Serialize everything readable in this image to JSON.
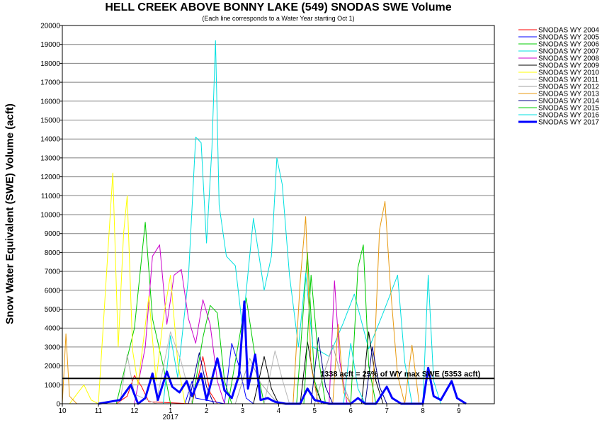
{
  "chart_data": {
    "type": "line",
    "title": "HELL CREEK ABOVE BONNY LAKE (549) SNODAS SWE Volume",
    "subtitle": "(Each line corresponds to a Water Year starting Oct 1)",
    "ylabel": "Snow Water Equivalent (SWE) Volume (acft)",
    "xlabel": "",
    "ylim": [
      0,
      20000
    ],
    "y_ticks": [
      0,
      1000,
      2000,
      3000,
      4000,
      5000,
      6000,
      7000,
      8000,
      9000,
      10000,
      11000,
      12000,
      13000,
      14000,
      15000,
      16000,
      17000,
      18000,
      19000,
      20000
    ],
    "y_tick_labels": [
      "0",
      "1000",
      "2000",
      "3000",
      "4000",
      "5000",
      "6000",
      "7000",
      "8000",
      "9000",
      "10000",
      "11000",
      "12000",
      "13000",
      "14000",
      "15000",
      "16000",
      "17000",
      "18000",
      "19000",
      "20000"
    ],
    "x_tick_labels": [
      "10",
      "11",
      "12",
      "1",
      "2",
      "3",
      "4",
      "5",
      "6",
      "7",
      "8",
      "9"
    ],
    "x_year_label": "2017",
    "grid": true,
    "legend_position": "right",
    "reference_line": {
      "value": 1338,
      "label": "1338 acft = 25% of WY max SWE (5353 acft)"
    },
    "series": [
      {
        "name": "SNODAS WY 2004",
        "color": "#ff0000",
        "width": 1,
        "points": [
          [
            1.5,
            0
          ],
          [
            1.8,
            400
          ],
          [
            2.0,
            1500
          ],
          [
            2.2,
            900
          ],
          [
            2.4,
            100
          ],
          [
            3.6,
            0
          ],
          [
            3.9,
            2500
          ],
          [
            4.1,
            600
          ],
          [
            4.3,
            0
          ]
        ]
      },
      {
        "name": "SNODAS WY 2005",
        "color": "#0000ff",
        "width": 1,
        "points": [
          [
            3.4,
            0
          ],
          [
            3.6,
            1200
          ],
          [
            3.7,
            300
          ],
          [
            4.5,
            0
          ],
          [
            4.7,
            3200
          ],
          [
            4.9,
            2000
          ],
          [
            5.1,
            300
          ],
          [
            5.3,
            0
          ]
        ]
      },
      {
        "name": "SNODAS WY 2006",
        "color": "#00cc00",
        "width": 1,
        "points": [
          [
            1.5,
            0
          ],
          [
            2.0,
            4000
          ],
          [
            2.3,
            9600
          ],
          [
            2.5,
            4500
          ],
          [
            2.8,
            2000
          ],
          [
            3.0,
            0
          ],
          [
            4.6,
            0
          ],
          [
            5.1,
            5600
          ],
          [
            5.4,
            1800
          ],
          [
            5.6,
            0
          ],
          [
            6.5,
            0
          ],
          [
            6.8,
            8000
          ],
          [
            7.0,
            1200
          ],
          [
            7.2,
            0
          ]
        ]
      },
      {
        "name": "SNODAS WY 2007",
        "color": "#00e0e0",
        "width": 1,
        "points": [
          [
            2.8,
            0
          ],
          [
            3.0,
            3600
          ],
          [
            3.2,
            1400
          ],
          [
            3.5,
            6700
          ],
          [
            3.7,
            14100
          ],
          [
            3.85,
            13800
          ],
          [
            4.0,
            8500
          ],
          [
            4.15,
            13500
          ],
          [
            4.25,
            19200
          ],
          [
            4.35,
            10500
          ],
          [
            4.55,
            7800
          ],
          [
            4.8,
            7300
          ],
          [
            5.0,
            4000
          ],
          [
            5.3,
            9800
          ],
          [
            5.6,
            6000
          ],
          [
            5.8,
            7800
          ],
          [
            5.95,
            13000
          ],
          [
            6.1,
            11600
          ],
          [
            6.3,
            6800
          ],
          [
            6.55,
            3000
          ],
          [
            6.75,
            6900
          ],
          [
            6.95,
            3000
          ],
          [
            7.4,
            2500
          ],
          [
            7.8,
            4300
          ],
          [
            8.1,
            5800
          ],
          [
            8.5,
            2900
          ],
          [
            8.9,
            4800
          ],
          [
            9.3,
            6800
          ],
          [
            9.5,
            2200
          ],
          [
            9.7,
            0
          ]
        ]
      },
      {
        "name": "SNODAS WY 2008",
        "color": "#cc00cc",
        "width": 1,
        "points": [
          [
            2.0,
            0
          ],
          [
            2.3,
            3000
          ],
          [
            2.5,
            7800
          ],
          [
            2.7,
            8400
          ],
          [
            2.9,
            4200
          ],
          [
            3.1,
            6800
          ],
          [
            3.3,
            7100
          ],
          [
            3.5,
            4500
          ],
          [
            3.7,
            3200
          ],
          [
            3.9,
            5500
          ],
          [
            4.1,
            4200
          ],
          [
            4.3,
            1200
          ],
          [
            4.5,
            0
          ],
          [
            7.4,
            0
          ],
          [
            7.55,
            6500
          ],
          [
            7.7,
            2200
          ],
          [
            7.9,
            0
          ]
        ]
      },
      {
        "name": "SNODAS WY 2009",
        "color": "#000000",
        "width": 1,
        "points": [
          [
            5.3,
            0
          ],
          [
            5.6,
            2500
          ],
          [
            5.8,
            800
          ],
          [
            6.0,
            0
          ],
          [
            6.6,
            0
          ],
          [
            6.8,
            3300
          ],
          [
            7.0,
            1000
          ],
          [
            7.2,
            0
          ],
          [
            8.3,
            0
          ],
          [
            8.5,
            3800
          ],
          [
            8.7,
            1200
          ],
          [
            8.9,
            0
          ]
        ]
      },
      {
        "name": "SNODAS WY 2010",
        "color": "#ffff00",
        "width": 1,
        "points": [
          [
            0.2,
            0
          ],
          [
            0.6,
            1000
          ],
          [
            0.8,
            200
          ],
          [
            1.0,
            0
          ],
          [
            1.4,
            12200
          ],
          [
            1.55,
            3000
          ],
          [
            1.7,
            9000
          ],
          [
            1.8,
            11000
          ],
          [
            1.95,
            2800
          ],
          [
            2.1,
            1000
          ],
          [
            2.4,
            5700
          ],
          [
            2.6,
            1200
          ],
          [
            2.8,
            4500
          ],
          [
            3.0,
            6800
          ],
          [
            3.2,
            2200
          ],
          [
            3.4,
            0
          ]
        ]
      },
      {
        "name": "SNODAS WY 2011",
        "color": "#b8b8b8",
        "width": 1,
        "points": [
          [
            1.6,
            0
          ],
          [
            1.8,
            2600
          ],
          [
            2.0,
            500
          ],
          [
            2.6,
            0
          ],
          [
            3.0,
            3800
          ],
          [
            3.3,
            2200
          ],
          [
            3.6,
            0
          ],
          [
            5.6,
            0
          ],
          [
            5.9,
            2800
          ],
          [
            6.1,
            1300
          ],
          [
            6.3,
            0
          ]
        ]
      },
      {
        "name": "SNODAS WY 2012",
        "color": "#a0a0a0",
        "width": 1,
        "points": [
          [
            4.8,
            0
          ],
          [
            5.2,
            2400
          ],
          [
            5.5,
            1100
          ],
          [
            5.8,
            400
          ],
          [
            6.0,
            0
          ],
          [
            7.0,
            0
          ],
          [
            7.5,
            3100
          ],
          [
            7.8,
            1000
          ],
          [
            8.0,
            0
          ]
        ]
      },
      {
        "name": "SNODAS WY 2013",
        "color": "#e89a10",
        "width": 1,
        "points": [
          [
            0.0,
            0
          ],
          [
            0.1,
            3700
          ],
          [
            0.2,
            400
          ],
          [
            0.4,
            0
          ],
          [
            6.4,
            0
          ],
          [
            6.6,
            6500
          ],
          [
            6.75,
            9900
          ],
          [
            6.9,
            2000
          ],
          [
            7.1,
            0
          ],
          [
            7.5,
            0
          ],
          [
            7.65,
            4200
          ],
          [
            7.8,
            600
          ],
          [
            8.0,
            0
          ],
          [
            8.6,
            0
          ],
          [
            8.8,
            9200
          ],
          [
            8.95,
            10700
          ],
          [
            9.1,
            6200
          ],
          [
            9.3,
            1500
          ],
          [
            9.5,
            0
          ],
          [
            9.7,
            3100
          ],
          [
            9.9,
            0
          ]
        ]
      },
      {
        "name": "SNODAS WY 2014",
        "color": "#00008b",
        "width": 1,
        "points": [
          [
            3.5,
            0
          ],
          [
            3.8,
            2700
          ],
          [
            4.0,
            900
          ],
          [
            4.2,
            0
          ],
          [
            6.9,
            0
          ],
          [
            7.1,
            3500
          ],
          [
            7.3,
            900
          ],
          [
            7.5,
            0
          ],
          [
            8.4,
            0
          ],
          [
            8.6,
            3000
          ],
          [
            8.8,
            900
          ],
          [
            9.0,
            0
          ]
        ]
      },
      {
        "name": "SNODAS WY 2015",
        "color": "#00cc00",
        "width": 1,
        "points": [
          [
            3.6,
            0
          ],
          [
            3.9,
            3500
          ],
          [
            4.1,
            5200
          ],
          [
            4.3,
            4800
          ],
          [
            4.5,
            1200
          ],
          [
            4.7,
            0
          ],
          [
            6.7,
            0
          ],
          [
            6.9,
            6800
          ],
          [
            7.1,
            2500
          ],
          [
            7.3,
            0
          ],
          [
            8.0,
            0
          ],
          [
            8.2,
            7200
          ],
          [
            8.35,
            8400
          ],
          [
            8.5,
            2000
          ],
          [
            8.7,
            0
          ]
        ]
      },
      {
        "name": "SNODAS WY 2016",
        "color": "#00e0e0",
        "width": 1,
        "points": [
          [
            7.8,
            0
          ],
          [
            8.0,
            3200
          ],
          [
            8.2,
            800
          ],
          [
            8.4,
            0
          ],
          [
            10.0,
            0
          ],
          [
            10.15,
            6800
          ],
          [
            10.3,
            1200
          ],
          [
            10.5,
            0
          ]
        ]
      },
      {
        "name": "SNODAS WY 2017",
        "color": "#0000ff",
        "width": 3,
        "points": [
          [
            1.0,
            0
          ],
          [
            1.6,
            200
          ],
          [
            1.9,
            1000
          ],
          [
            2.1,
            0
          ],
          [
            2.3,
            300
          ],
          [
            2.5,
            1600
          ],
          [
            2.65,
            200
          ],
          [
            2.9,
            1700
          ],
          [
            3.05,
            900
          ],
          [
            3.25,
            600
          ],
          [
            3.45,
            1200
          ],
          [
            3.6,
            400
          ],
          [
            3.75,
            1100
          ],
          [
            3.85,
            1600
          ],
          [
            4.0,
            200
          ],
          [
            4.3,
            2400
          ],
          [
            4.5,
            700
          ],
          [
            4.7,
            300
          ],
          [
            4.9,
            1500
          ],
          [
            5.05,
            5400
          ],
          [
            5.15,
            800
          ],
          [
            5.35,
            2600
          ],
          [
            5.5,
            200
          ],
          [
            5.7,
            300
          ],
          [
            5.9,
            100
          ],
          [
            6.2,
            0
          ],
          [
            6.6,
            0
          ],
          [
            6.8,
            800
          ],
          [
            7.0,
            200
          ],
          [
            7.4,
            0
          ],
          [
            8.0,
            0
          ],
          [
            8.2,
            300
          ],
          [
            8.4,
            0
          ],
          [
            8.7,
            0
          ],
          [
            9.0,
            900
          ],
          [
            9.15,
            300
          ],
          [
            9.4,
            0
          ],
          [
            10.0,
            0
          ],
          [
            10.15,
            1900
          ],
          [
            10.3,
            400
          ],
          [
            10.5,
            200
          ],
          [
            10.8,
            1200
          ],
          [
            10.95,
            300
          ],
          [
            11.2,
            0
          ]
        ]
      }
    ]
  }
}
